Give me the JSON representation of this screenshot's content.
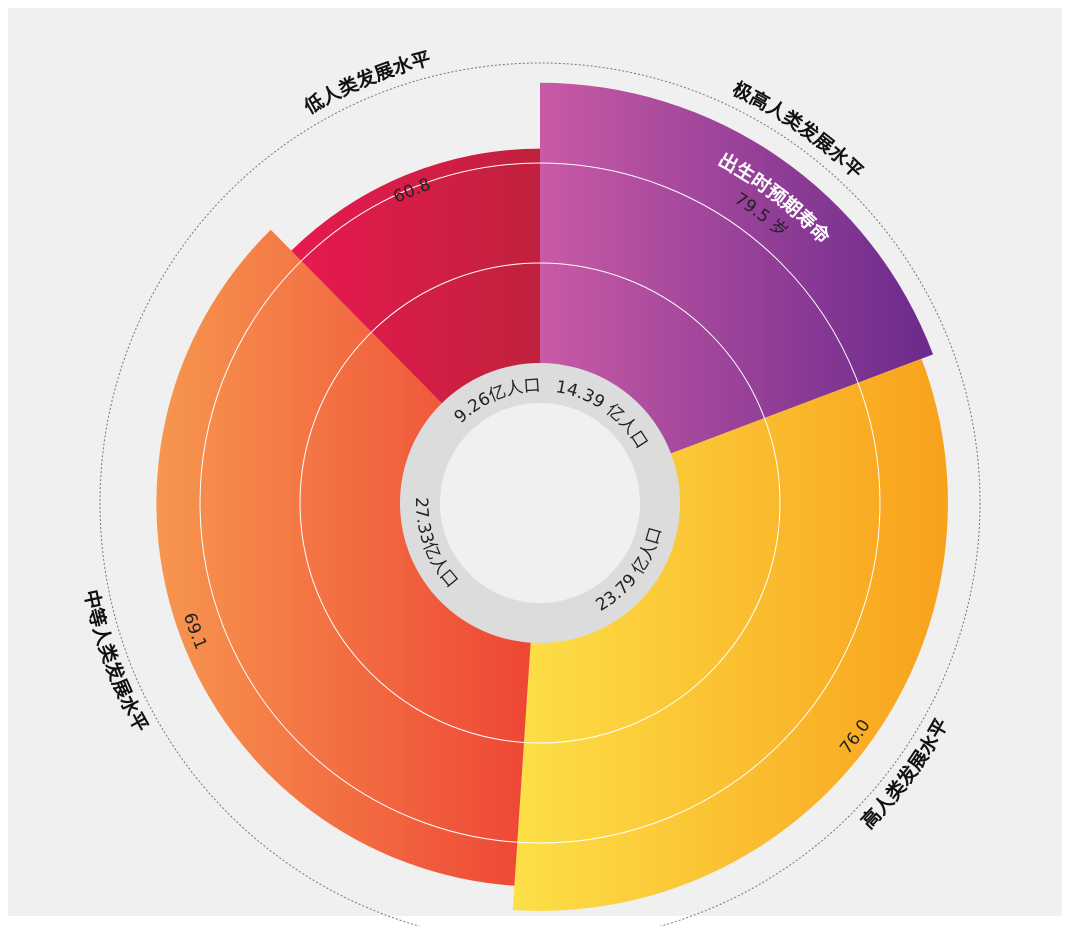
{
  "chart_data": {
    "type": "polar_area",
    "categories": [
      "极高人类发展水平",
      "高人类发展水平",
      "中等人类发展水平",
      "低人类发展水平"
    ],
    "values": [
      79.5,
      76.0,
      69.1,
      60.8
    ],
    "value_labels": [
      "79.5 岁",
      "76.0",
      "69.1",
      "60.8"
    ],
    "population": [
      14.39,
      23.79,
      27.33,
      9.26
    ],
    "population_labels": [
      "14.39 亿人口",
      "23.79 亿人口",
      "27.33亿人口",
      "9.26亿人口"
    ],
    "annotation": "出生时预期寿命",
    "colors": [
      [
        "#c95aa6",
        "#6a2a8c"
      ],
      [
        "#fde047",
        "#f8a11c"
      ],
      [
        "#f7964f",
        "#ee4434"
      ],
      [
        "#e8194f",
        "#c0213d"
      ]
    ],
    "rlim": [
      0,
      80
    ]
  }
}
